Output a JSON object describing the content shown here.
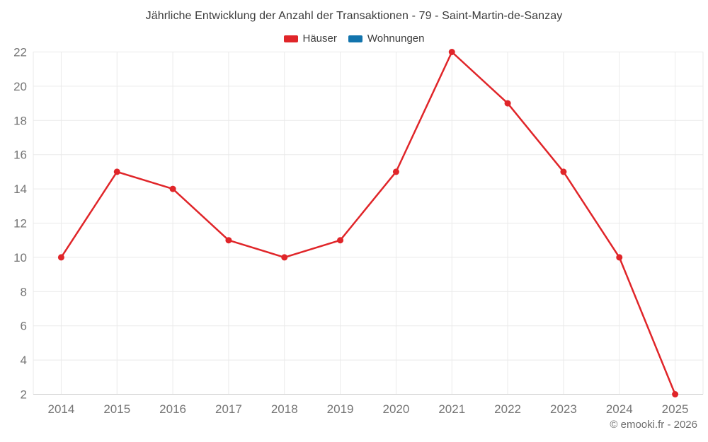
{
  "page": {
    "background": "#ffffff"
  },
  "chart_data": {
    "type": "line",
    "title": "Jährliche Entwicklung der Anzahl der Transaktionen - 79 - Saint-Martin-de-Sanzay",
    "categories": [
      "2014",
      "2015",
      "2016",
      "2017",
      "2018",
      "2019",
      "2020",
      "2021",
      "2022",
      "2023",
      "2024",
      "2025"
    ],
    "series": [
      {
        "name": "Häuser",
        "color": "#e02529",
        "values": [
          10,
          15,
          14,
          11,
          10,
          11,
          15,
          22,
          19,
          15,
          10,
          2
        ]
      },
      {
        "name": "Wohnungen",
        "color": "#1274ad",
        "values": [],
        "legend_only": true
      }
    ],
    "xlabel": "",
    "ylabel": "",
    "ylim": [
      2,
      22
    ],
    "ytick_step": 2,
    "grid": true,
    "legend_position": "top",
    "grid_color": "#eaeaea",
    "axis_line_color": "#cfcfcf",
    "axis_label_color": "#757575"
  },
  "footer": {
    "copyright": "© emooki.fr - 2026"
  }
}
